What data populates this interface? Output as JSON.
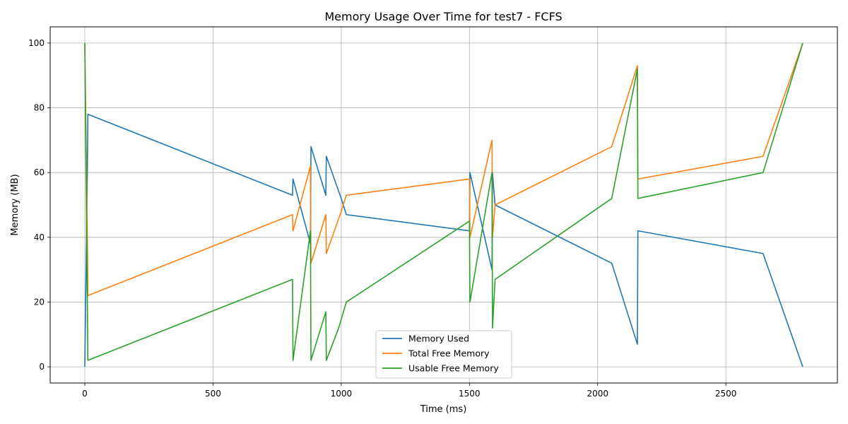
{
  "chart_data": {
    "type": "line",
    "title": "Memory Usage Over Time for test7 - FCFS",
    "xlabel": "Time (ms)",
    "ylabel": "Memory (MB)",
    "xlim": [
      -135,
      2935
    ],
    "ylim": [
      -5,
      105
    ],
    "xticks": [
      0,
      500,
      1000,
      1500,
      2000,
      2500
    ],
    "yticks": [
      0,
      20,
      40,
      60,
      80,
      100
    ],
    "grid": true,
    "legend_position": "lower center",
    "series": [
      {
        "name": "Memory Used",
        "color": "#1f77b4",
        "points": [
          [
            0,
            0
          ],
          [
            10,
            60
          ],
          [
            12,
            78
          ],
          [
            810,
            53
          ],
          [
            812,
            58
          ],
          [
            880,
            38
          ],
          [
            882,
            68
          ],
          [
            940,
            53
          ],
          [
            942,
            65
          ],
          [
            1000,
            52
          ],
          [
            1020,
            47
          ],
          [
            1500,
            42
          ],
          [
            1502,
            60
          ],
          [
            1588,
            30
          ],
          [
            1590,
            60
          ],
          [
            1600,
            50
          ],
          [
            2055,
            32
          ],
          [
            2155,
            7
          ],
          [
            2157,
            42
          ],
          [
            2645,
            35
          ],
          [
            2800,
            0
          ]
        ]
      },
      {
        "name": "Total Free Memory",
        "color": "#ff7f0e",
        "points": [
          [
            0,
            100
          ],
          [
            10,
            40
          ],
          [
            12,
            22
          ],
          [
            810,
            47
          ],
          [
            812,
            42
          ],
          [
            880,
            62
          ],
          [
            882,
            32
          ],
          [
            940,
            47
          ],
          [
            942,
            35
          ],
          [
            1000,
            48
          ],
          [
            1020,
            53
          ],
          [
            1500,
            58
          ],
          [
            1502,
            40
          ],
          [
            1588,
            70
          ],
          [
            1590,
            40
          ],
          [
            1600,
            50
          ],
          [
            2055,
            68
          ],
          [
            2155,
            93
          ],
          [
            2157,
            58
          ],
          [
            2645,
            65
          ],
          [
            2800,
            100
          ]
        ]
      },
      {
        "name": "Usable Free Memory",
        "color": "#2ca02c",
        "points": [
          [
            0,
            100
          ],
          [
            10,
            20
          ],
          [
            12,
            2
          ],
          [
            810,
            27
          ],
          [
            812,
            2
          ],
          [
            880,
            42
          ],
          [
            882,
            2
          ],
          [
            940,
            17
          ],
          [
            942,
            2
          ],
          [
            990,
            12
          ],
          [
            1020,
            20
          ],
          [
            1500,
            45
          ],
          [
            1502,
            20
          ],
          [
            1588,
            60
          ],
          [
            1590,
            12
          ],
          [
            1600,
            27
          ],
          [
            2055,
            52
          ],
          [
            2155,
            92
          ],
          [
            2157,
            52
          ],
          [
            2645,
            60
          ],
          [
            2800,
            100
          ]
        ]
      }
    ]
  }
}
